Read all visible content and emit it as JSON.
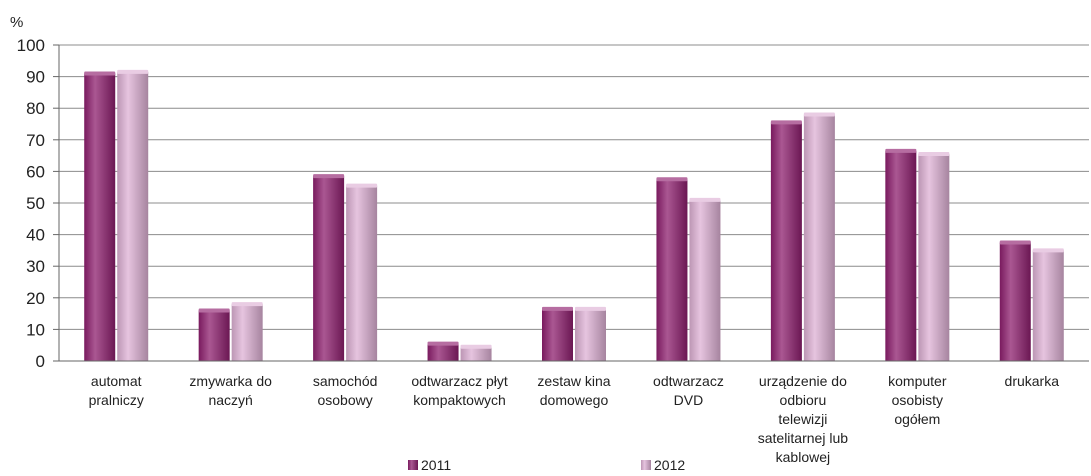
{
  "chart_data": {
    "type": "bar",
    "unit": "%",
    "categories": [
      [
        "automat",
        "pralniczy"
      ],
      [
        "zmywarka  do",
        "naczyń"
      ],
      [
        "samochód",
        "osobowy"
      ],
      [
        "odtwarzacz płyt",
        "kompaktowych"
      ],
      [
        "zestaw kina",
        "domowego"
      ],
      [
        "odtwarzacz",
        "DVD"
      ],
      [
        "urządzenie do",
        "odbioru",
        "telewizji",
        "satelitarnej lub",
        "kablowej"
      ],
      [
        "komputer",
        "osobisty",
        "ogółem"
      ],
      [
        "drukarka"
      ]
    ],
    "series": [
      {
        "name": "2011",
        "color": "#8e1f6e",
        "values": [
          91,
          16,
          58.5,
          5.5,
          16.5,
          57.5,
          75.5,
          66.5,
          37.5
        ]
      },
      {
        "name": "2012",
        "color": "#ddb0d4",
        "values": [
          91.5,
          18,
          55.5,
          4.5,
          16.5,
          51,
          78,
          65.5,
          35
        ]
      }
    ],
    "ylim": [
      0,
      100
    ],
    "yticks": [
      0,
      10,
      20,
      30,
      40,
      50,
      60,
      70,
      80,
      90,
      100
    ],
    "grid": true,
    "legend_position": "bottom"
  }
}
